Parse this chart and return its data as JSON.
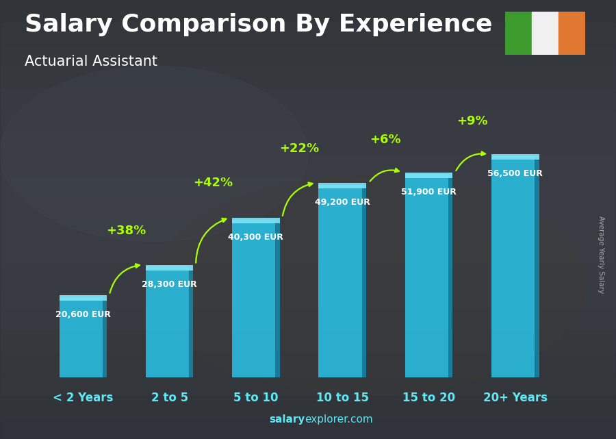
{
  "title": "Salary Comparison By Experience",
  "subtitle": "Actuarial Assistant",
  "ylabel_right": "Average Yearly Salary",
  "footer_bold": "salary",
  "footer_regular": "explorer.com",
  "categories": [
    "< 2 Years",
    "2 to 5",
    "5 to 10",
    "10 to 15",
    "15 to 20",
    "20+ Years"
  ],
  "values": [
    20600,
    28300,
    40300,
    49200,
    51900,
    56500
  ],
  "value_labels": [
    "20,600 EUR",
    "28,300 EUR",
    "40,300 EUR",
    "49,200 EUR",
    "51,900 EUR",
    "56,500 EUR"
  ],
  "pct_labels": [
    "+38%",
    "+42%",
    "+22%",
    "+6%",
    "+9%"
  ],
  "bar_face_color": "#29C4E8",
  "bar_side_color": "#1488AA",
  "bar_top_color": "#7EE5F8",
  "bg_dark": "#3a3d42",
  "bg_mid": "#4a5058",
  "title_color": "#FFFFFF",
  "subtitle_color": "#FFFFFF",
  "value_color": "#FFFFFF",
  "pct_color": "#AAFF00",
  "cat_color": "#5DE8F5",
  "footer_color": "#5DE8F5",
  "ylabel_color": "#AAAAAA",
  "ylim_max": 65000,
  "flag_green": "#3D9B2E",
  "flag_white": "#F0F0F0",
  "flag_orange": "#E07832",
  "title_fontsize": 26,
  "subtitle_fontsize": 15,
  "cat_fontsize": 12,
  "val_fontsize": 9,
  "pct_fontsize": 13,
  "footer_fontsize": 11
}
